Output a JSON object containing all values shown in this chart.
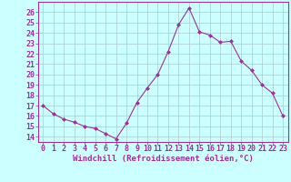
{
  "x": [
    0,
    1,
    2,
    3,
    4,
    5,
    6,
    7,
    8,
    9,
    10,
    11,
    12,
    13,
    14,
    15,
    16,
    17,
    18,
    19,
    20,
    21,
    22,
    23
  ],
  "y": [
    17.0,
    16.2,
    15.7,
    15.4,
    15.0,
    14.8,
    14.3,
    13.8,
    15.3,
    17.3,
    18.7,
    20.0,
    22.2,
    24.8,
    26.4,
    24.1,
    23.8,
    23.1,
    23.2,
    21.3,
    20.4,
    19.0,
    18.2,
    16.0
  ],
  "line_color": "#993399",
  "marker": "D",
  "marker_size": 2.0,
  "bg_color": "#ccffff",
  "grid_color": "#aacccc",
  "xlabel": "Windchill (Refroidissement éolien,°C)",
  "xlabel_color": "#993399",
  "tick_color": "#993399",
  "ylim": [
    13.5,
    27.0
  ],
  "xlim": [
    -0.5,
    23.5
  ],
  "yticks": [
    14,
    15,
    16,
    17,
    18,
    19,
    20,
    21,
    22,
    23,
    24,
    25,
    26
  ],
  "xticks": [
    0,
    1,
    2,
    3,
    4,
    5,
    6,
    7,
    8,
    9,
    10,
    11,
    12,
    13,
    14,
    15,
    16,
    17,
    18,
    19,
    20,
    21,
    22,
    23
  ],
  "spine_color": "#993399",
  "tick_fontsize": 6,
  "xlabel_fontsize": 6.5
}
